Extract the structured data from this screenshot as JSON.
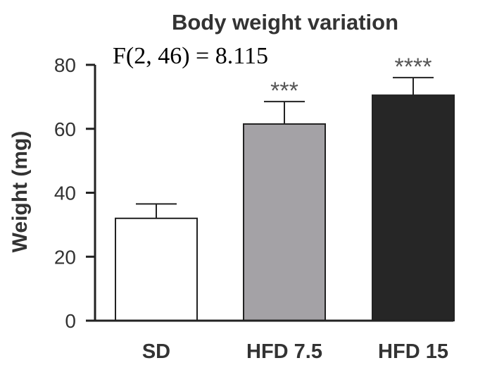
{
  "chart_data": {
    "type": "bar",
    "title": "Body weight variation",
    "annotation": "F(2, 46) = 8.115",
    "ylabel": "Weight (mg)",
    "xlabel": "",
    "ylim": [
      0,
      80
    ],
    "yticks": [
      0,
      20,
      40,
      60,
      80
    ],
    "categories": [
      "SD",
      "HFD 7.5",
      "HFD 15"
    ],
    "values": [
      32,
      61.5,
      70.5
    ],
    "errors": [
      4.5,
      7,
      5.5
    ],
    "significance": [
      "",
      "***",
      "****"
    ],
    "colors": [
      "#ffffff",
      "#a4a2a6",
      "#262626"
    ],
    "grid": false,
    "legend": "none"
  }
}
